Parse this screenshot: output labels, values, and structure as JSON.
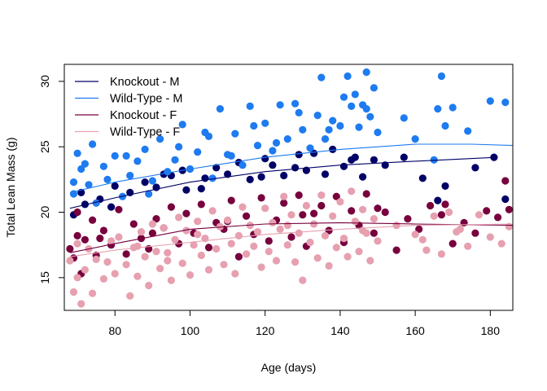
{
  "chart_data": {
    "type": "scatter",
    "xlabel": "Age (days)",
    "ylabel": "Total Lean Mass (g)",
    "xlim": [
      66.5,
      186
    ],
    "ylim": [
      12.5,
      31.3
    ],
    "xticks": [
      "80",
      "100",
      "120",
      "140",
      "160",
      "180"
    ],
    "yticks": [
      "15",
      "20",
      "25",
      "30"
    ],
    "grid": false,
    "legend_position": "top-left",
    "series": [
      {
        "name": "Knockout - M",
        "color": "#000066",
        "trend": {
          "x": [
            68,
            80,
            100,
            120,
            140,
            160,
            182
          ],
          "y": [
            20.3,
            21.1,
            22.3,
            23.1,
            23.6,
            23.9,
            24.2
          ]
        },
        "points": {
          "x": [
            69,
            72,
            76,
            79,
            84,
            88,
            91,
            95,
            98,
            99,
            104,
            107,
            110,
            113,
            116,
            120,
            122,
            125,
            129,
            131,
            133,
            136,
            138,
            141,
            144,
            146,
            149,
            152,
            157,
            162,
            166,
            168,
            176,
            181,
            184,
            71,
            80,
            93,
            103,
            119,
            128,
            143
          ],
          "y": [
            19.8,
            20.6,
            21.0,
            20.4,
            21.5,
            22.3,
            21.9,
            22.8,
            23.2,
            21.7,
            22.6,
            23.4,
            22.9,
            23.8,
            22.5,
            24.1,
            23.6,
            22.8,
            24.4,
            23.2,
            24.5,
            22.9,
            24.8,
            23.5,
            24.2,
            22.7,
            24.0,
            23.6,
            24.2,
            22.6,
            20.9,
            22.0,
            23.4,
            24.2,
            21.0,
            21.5,
            22.0,
            22.9,
            21.8,
            22.7,
            23.4,
            24.0
          ]
        }
      },
      {
        "name": "Wild-Type - M",
        "color": "#1e7bf0",
        "trend": {
          "x": [
            68,
            80,
            100,
            120,
            140,
            160,
            175,
            186
          ],
          "y": [
            21.5,
            22.3,
            23.3,
            24.2,
            24.8,
            25.2,
            25.2,
            25.1
          ]
        },
        "points": {
          "x": [
            69,
            70,
            72,
            74,
            75,
            78,
            80,
            82,
            84,
            86,
            88,
            90,
            92,
            94,
            96,
            98,
            100,
            102,
            104,
            106,
            108,
            110,
            112,
            114,
            116,
            118,
            120,
            122,
            124,
            126,
            128,
            130,
            132,
            134,
            135,
            136,
            138,
            140,
            142,
            143,
            144,
            145,
            146,
            147,
            148,
            149,
            150,
            157,
            160,
            165,
            166,
            167,
            168,
            170,
            174,
            180,
            184,
            186,
            69,
            71,
            73,
            77,
            83,
            89,
            97,
            105,
            111,
            117,
            123,
            129,
            137,
            141,
            147
          ],
          "y": [
            22.3,
            24.5,
            23.7,
            25.2,
            20.7,
            22.5,
            24.3,
            21.2,
            22.8,
            23.9,
            24.8,
            22.4,
            25.6,
            23.1,
            24.0,
            26.7,
            23.3,
            24.6,
            26.1,
            22.6,
            27.9,
            24.4,
            26.0,
            23.6,
            28.1,
            25.1,
            26.8,
            24.7,
            28.2,
            25.6,
            28.3,
            26.3,
            24.9,
            27.4,
            30.3,
            25.6,
            27.0,
            26.6,
            30.4,
            28.1,
            29.0,
            26.5,
            28.2,
            30.7,
            27.3,
            29.5,
            26.1,
            27.2,
            25.6,
            24.0,
            27.9,
            30.4,
            26.6,
            28.0,
            26.2,
            28.5,
            28.4,
            25.5,
            21.4,
            23.3,
            22.1,
            23.5,
            24.3,
            21.4,
            25.0,
            25.8,
            24.3,
            26.6,
            25.3,
            27.6,
            26.3,
            28.8,
            27.9
          ]
        }
      },
      {
        "name": "Knockout - F",
        "color": "#77003d",
        "trend": {
          "x": [
            68,
            80,
            100,
            120,
            140,
            160,
            186
          ],
          "y": [
            16.9,
            17.6,
            18.7,
            19.1,
            19.2,
            19.1,
            19.0
          ]
        },
        "points": {
          "x": [
            68,
            69,
            70,
            71,
            72,
            74,
            75,
            77,
            79,
            81,
            83,
            85,
            87,
            89,
            91,
            93,
            95,
            97,
            99,
            101,
            103,
            105,
            107,
            109,
            111,
            113,
            115,
            117,
            119,
            121,
            123,
            125,
            127,
            129,
            131,
            133,
            135,
            137,
            139,
            141,
            143,
            145,
            147,
            149,
            152,
            155,
            158,
            161,
            164,
            167,
            170,
            173,
            176,
            179,
            182,
            184,
            185,
            186,
            70,
            76,
            90,
            110,
            130,
            150,
            168
          ],
          "y": [
            17.2,
            16.5,
            18.2,
            15.3,
            17.9,
            19.4,
            16.7,
            18.6,
            17.5,
            20.2,
            16.8,
            19.1,
            18.0,
            17.2,
            19.5,
            18.8,
            20.4,
            17.6,
            19.9,
            18.4,
            20.6,
            17.3,
            19.2,
            18.7,
            20.9,
            16.6,
            19.7,
            18.3,
            21.1,
            17.8,
            19.4,
            20.7,
            18.1,
            21.3,
            17.4,
            19.9,
            20.5,
            18.6,
            21.2,
            17.7,
            20.1,
            19.0,
            21.4,
            18.4,
            20.0,
            17.1,
            19.5,
            18.7,
            20.5,
            19.8,
            17.6,
            19.2,
            18.4,
            20.1,
            19.6,
            22.4,
            20.2,
            17.8,
            20.0,
            18.0,
            18.4,
            19.3,
            19.8,
            20.3,
            20.6
          ]
        }
      },
      {
        "name": "Wild-Type - F",
        "color": "#e6a0b0",
        "trend": {
          "x": [
            68,
            80,
            100,
            120,
            140,
            160,
            186
          ],
          "y": [
            16.6,
            17.1,
            17.7,
            18.3,
            18.7,
            19.0,
            19.1
          ]
        },
        "points": {
          "x": [
            68,
            69,
            70,
            71,
            72,
            73,
            74,
            75,
            77,
            79,
            80,
            81,
            83,
            84,
            85,
            86,
            87,
            88,
            89,
            90,
            91,
            92,
            93,
            94,
            95,
            96,
            97,
            98,
            99,
            100,
            101,
            102,
            103,
            104,
            105,
            106,
            107,
            108,
            109,
            110,
            111,
            112,
            113,
            114,
            115,
            116,
            117,
            118,
            119,
            120,
            121,
            122,
            123,
            124,
            125,
            126,
            127,
            128,
            129,
            130,
            131,
            132,
            133,
            134,
            135,
            136,
            137,
            138,
            139,
            140,
            141,
            142,
            143,
            144,
            145,
            146,
            147,
            148,
            149,
            150,
            155,
            160,
            163,
            165,
            167,
            169,
            171,
            174,
            177,
            180,
            183,
            185,
            186,
            70,
            78,
            86,
            94,
            102,
            126,
            146,
            162,
            172
          ],
          "y": [
            16.3,
            13.9,
            17.6,
            13.0,
            15.6,
            17.2,
            13.8,
            16.4,
            14.9,
            17.8,
            15.3,
            18.1,
            16.0,
            13.6,
            17.3,
            15.1,
            18.5,
            16.6,
            14.4,
            19.1,
            17.0,
            15.7,
            18.8,
            16.3,
            14.8,
            17.9,
            19.6,
            16.1,
            18.6,
            15.2,
            17.5,
            19.3,
            16.7,
            18.0,
            15.6,
            20.1,
            17.2,
            18.9,
            16.0,
            19.4,
            17.6,
            15.3,
            18.2,
            20.4,
            16.8,
            19.0,
            17.4,
            18.5,
            15.8,
            20.3,
            17.0,
            19.2,
            16.3,
            18.7,
            21.2,
            17.5,
            19.8,
            16.2,
            18.4,
            14.8,
            20.5,
            17.7,
            19.1,
            16.5,
            21.3,
            18.2,
            15.9,
            19.7,
            17.3,
            20.8,
            18.0,
            16.6,
            21.6,
            19.3,
            17.0,
            20.2,
            18.4,
            16.3,
            19.5,
            17.8,
            19.0,
            18.3,
            17.1,
            19.7,
            16.8,
            20.0,
            18.5,
            17.4,
            19.8,
            18.1,
            17.6,
            18.9,
            16.7,
            15.0,
            16.2,
            17.4,
            16.9,
            18.3,
            19.0,
            18.6,
            17.9,
            18.7
          ]
        }
      }
    ]
  }
}
